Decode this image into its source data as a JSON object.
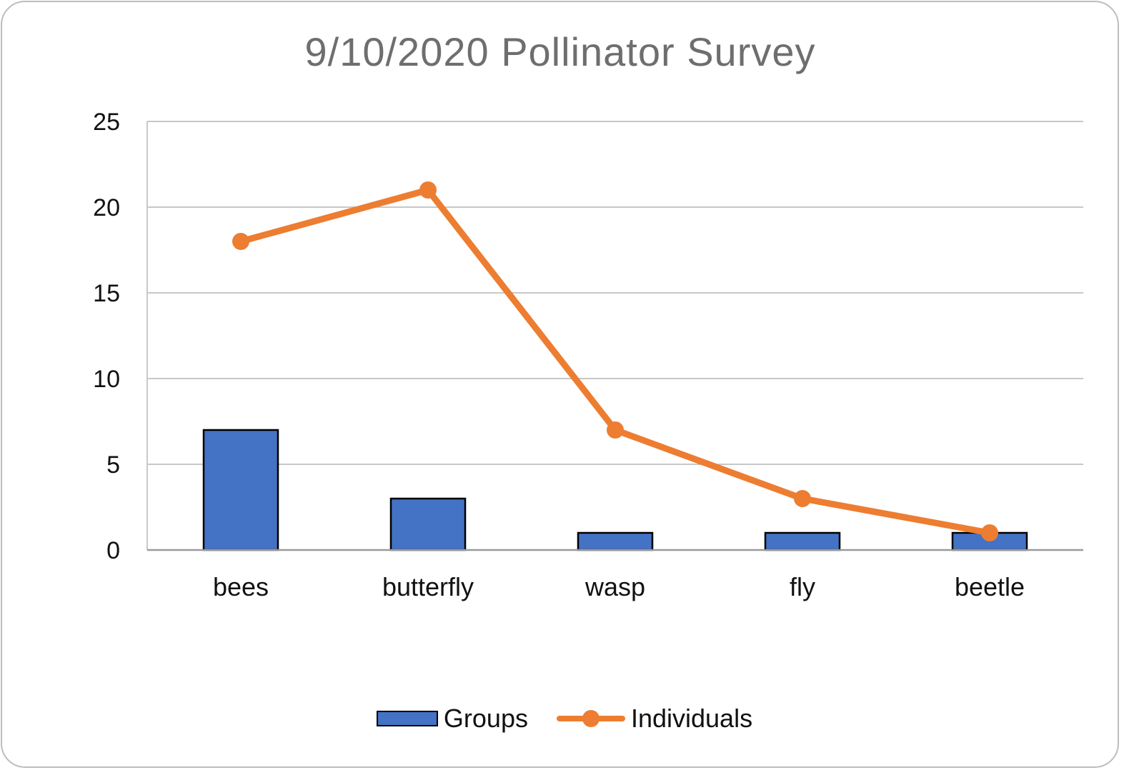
{
  "chart_data": {
    "type": "bar",
    "title": "9/10/2020 Pollinator Survey",
    "categories": [
      "bees",
      "butterfly",
      "wasp",
      "fly",
      "beetle"
    ],
    "series": [
      {
        "name": "Groups",
        "type": "bar",
        "values": [
          7,
          3,
          1,
          1,
          1
        ],
        "color": "#4472c4"
      },
      {
        "name": "Individuals",
        "type": "line",
        "values": [
          18,
          21,
          7,
          3,
          1
        ],
        "color": "#ed7d31"
      }
    ],
    "yticks": [
      "0",
      "5",
      "10",
      "15",
      "20",
      "25"
    ],
    "ylim": [
      0,
      25
    ],
    "grid": true,
    "legend_position": "bottom"
  }
}
